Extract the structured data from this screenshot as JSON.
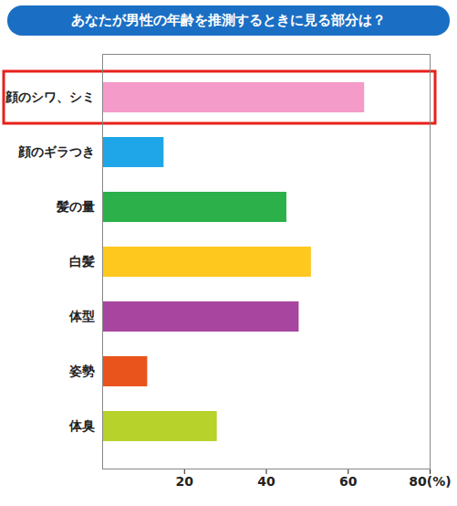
{
  "chart_data": {
    "type": "bar",
    "title": "あなたが男性の年齢を推測するときに見る部分は？",
    "orientation": "horizontal",
    "categories": [
      "顔のシワ、シミ",
      "顔のギラつき",
      "髪の量",
      "白髪",
      "体型",
      "姿勢",
      "体臭"
    ],
    "values": [
      64,
      15,
      45,
      51,
      48,
      11,
      28
    ],
    "colors": [
      "#f59bc9",
      "#1fa6e8",
      "#2bb04a",
      "#ffc81f",
      "#a8459f",
      "#e9541d",
      "#b6d22b"
    ],
    "xlim": [
      0,
      80
    ],
    "xticks": [
      20,
      40,
      60,
      {
        "value": 80,
        "label": "80(%)"
      }
    ],
    "grid": false
  }
}
